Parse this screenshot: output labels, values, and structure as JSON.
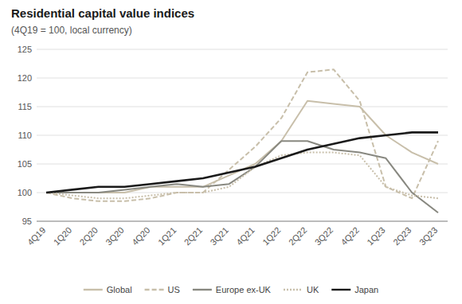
{
  "chart_data": {
    "type": "line",
    "title": "Residential capital value indices",
    "subtitle": "(4Q19 = 100, local currency)",
    "categories": [
      "4Q19",
      "1Q20",
      "2Q20",
      "3Q20",
      "4Q20",
      "1Q21",
      "2Q21",
      "3Q21",
      "4Q21",
      "1Q22",
      "2Q22",
      "3Q22",
      "4Q22",
      "1Q23",
      "2Q23",
      "3Q23"
    ],
    "series": [
      {
        "name": "Global",
        "color": "#c8bfaa",
        "line_style": "solid",
        "values": [
          100,
          100,
          100,
          100,
          101,
          101,
          101,
          103,
          105,
          109,
          116,
          115.5,
          115,
          110,
          107,
          105
        ]
      },
      {
        "name": "US",
        "color": "#c8bfaa",
        "line_style": "dashed",
        "values": [
          100,
          99,
          98.5,
          98.5,
          99,
          100,
          100,
          104,
          108,
          113,
          121,
          121.5,
          116,
          101,
          99,
          109
        ]
      },
      {
        "name": "Europe ex-UK",
        "color": "#888880",
        "line_style": "solid",
        "values": [
          100,
          100,
          100,
          100.5,
          101,
          101.5,
          101,
          101.5,
          104.5,
          109,
          109,
          107.5,
          107,
          106,
          100,
          96.5
        ]
      },
      {
        "name": "UK",
        "color": "#c8bfaa",
        "line_style": "dotted",
        "values": [
          100,
          99.5,
          99,
          99,
          99.5,
          100,
          100,
          101,
          104.5,
          106.5,
          107,
          107,
          106.5,
          101,
          99.5,
          99
        ]
      },
      {
        "name": "Japan",
        "color": "#1a1a1a",
        "line_style": "solid",
        "values": [
          100,
          100.5,
          101,
          101,
          101.5,
          102,
          102.5,
          103.5,
          104.5,
          106,
          107.5,
          108.5,
          109.5,
          110,
          110.5,
          110.5
        ]
      }
    ],
    "ylim": [
      95,
      125
    ],
    "yticks": [
      95,
      100,
      105,
      110,
      115,
      120,
      125
    ],
    "grid": true,
    "legend": "bottom"
  }
}
